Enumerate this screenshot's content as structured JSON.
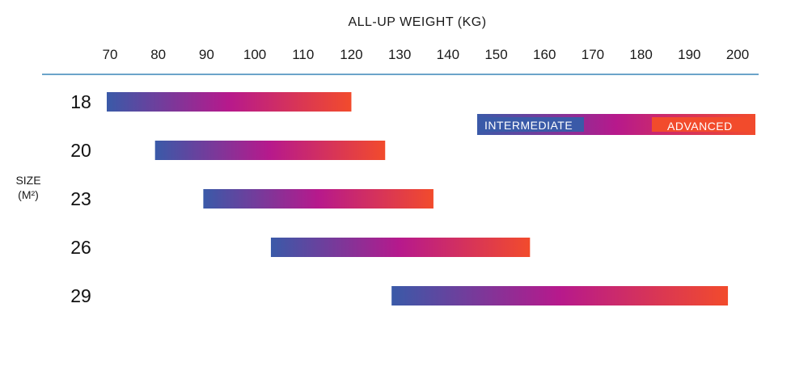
{
  "chart_data": {
    "type": "range-bar",
    "title": "ALL-UP WEIGHT (KG)",
    "ylabel": [
      "SIZE",
      "(M²)"
    ],
    "xlim": [
      70,
      200
    ],
    "xticks": [
      70,
      80,
      90,
      100,
      110,
      120,
      130,
      140,
      150,
      160,
      170,
      180,
      190,
      200
    ],
    "categories": [
      "18",
      "20",
      "23",
      "26",
      "29"
    ],
    "ranges": [
      {
        "size": "18",
        "min": 70,
        "max": 120
      },
      {
        "size": "20",
        "min": 80,
        "max": 127
      },
      {
        "size": "23",
        "min": 90,
        "max": 137
      },
      {
        "size": "26",
        "min": 104,
        "max": 157
      },
      {
        "size": "29",
        "min": 129,
        "max": 198
      }
    ],
    "legend": {
      "position": "top-right",
      "labels": [
        "INTERMEDIATE",
        "ADVANCED"
      ]
    },
    "colors": {
      "gradient": [
        "#3a5aa8",
        "#b7198c",
        "#f24b2c"
      ],
      "axis": "#3a86b8"
    }
  }
}
